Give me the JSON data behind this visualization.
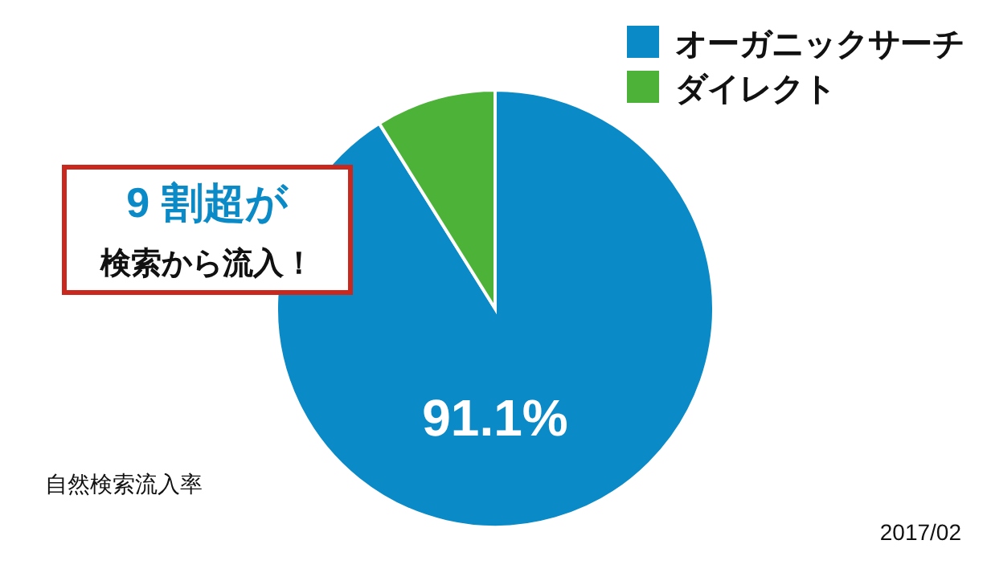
{
  "chart_data": {
    "type": "pie",
    "categories": [
      "オーガニックサーチ",
      "ダイレクト"
    ],
    "values": [
      91.1,
      8.9
    ],
    "colors": [
      "#0a8ac6",
      "#4db338"
    ],
    "value_labels": [
      "91.1%",
      null
    ],
    "legend": "top right",
    "annotations": [
      "9 割超が",
      "検索から流入！",
      "自然検索流入率",
      "2017/02"
    ]
  }
}
